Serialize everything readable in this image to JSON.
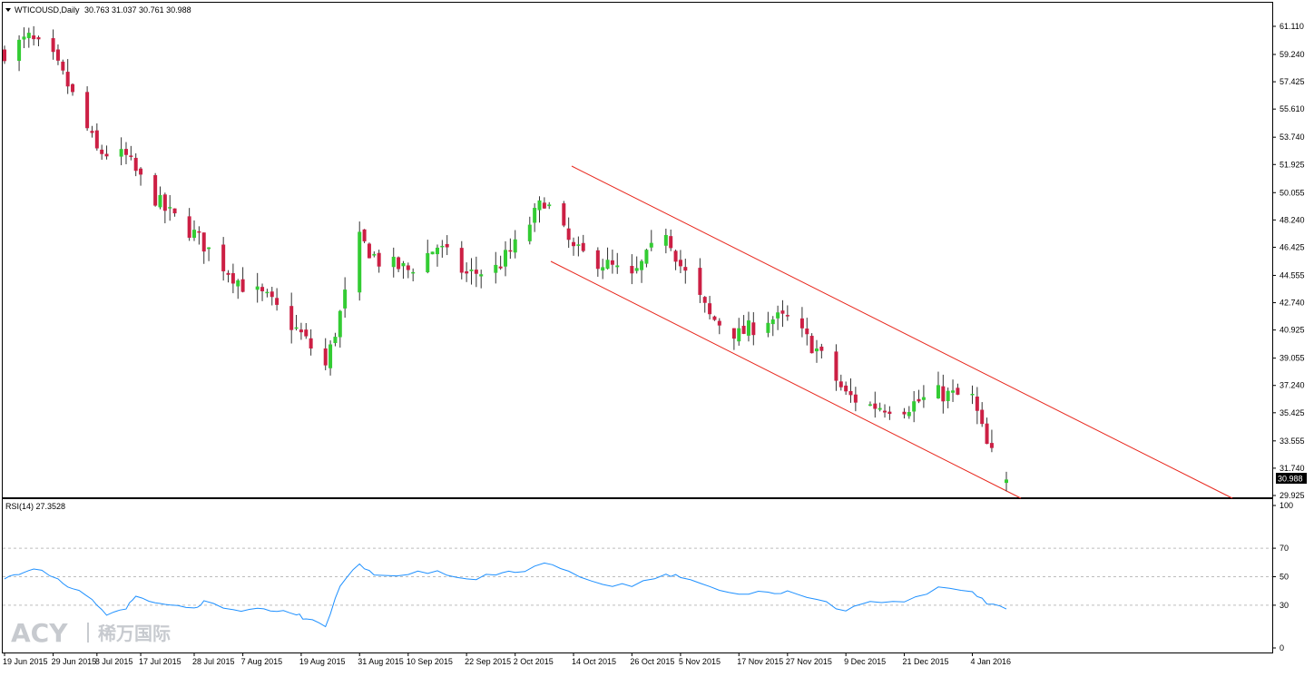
{
  "header": {
    "symbol": "WTICOUSD,Daily",
    "ohlc": "30.763 31.037 30.761 30.988"
  },
  "price_axis": {
    "ticks": [
      "61.110",
      "59.240",
      "57.425",
      "55.610",
      "53.740",
      "51.925",
      "50.055",
      "48.240",
      "46.425",
      "44.555",
      "42.740",
      "40.925",
      "39.055",
      "37.240",
      "35.425",
      "33.555",
      "31.740",
      "29.925"
    ],
    "current_price": "30.988"
  },
  "rsi": {
    "label": "RSI(14) 27.3528",
    "ticks": [
      "100",
      "70",
      "50",
      "30",
      "0"
    ],
    "color": "#1e90ff",
    "levels": [
      70,
      50,
      30
    ]
  },
  "date_axis": {
    "labels": [
      "19 Jun 2015",
      "29 Jun 2015",
      "8 Jul 2015",
      "17 Jul 2015",
      "28 Jul 2015",
      "7 Aug 2015",
      "19 Aug 2015",
      "31 Aug 2015",
      "10 Sep 2015",
      "22 Sep 2015",
      "2 Oct 2015",
      "14 Oct 2015",
      "26 Oct 2015",
      "5 Nov 2015",
      "17 Nov 2015",
      "27 Nov 2015",
      "9 Dec 2015",
      "21 Dec 2015",
      "4 Jan 2016"
    ]
  },
  "watermark": {
    "brand": "ACY",
    "brand_cn": "稀万国际"
  },
  "colors": {
    "bull": "#33cc33",
    "bear": "#cc1f44",
    "channel": "#e8281e",
    "grid": "#bdbdbd"
  },
  "chart_data": [
    {
      "type": "candlestick",
      "title": "WTICOUSD,Daily",
      "x_range": [
        "19 Jun 2015",
        "11 Jan 2016"
      ],
      "ylim": [
        29.925,
        61.11
      ],
      "annotations": "descending channel",
      "close_path": [
        [
          "19 Jun 2015",
          59.4
        ],
        [
          "24 Jun 2015",
          60.3
        ],
        [
          "29 Jun 2015",
          58.9
        ],
        [
          "2 Jul 2015",
          57.2
        ],
        [
          "8 Jul 2015",
          52.8
        ],
        [
          "14 Jul 2015",
          52.4
        ],
        [
          "17 Jul 2015",
          50.9
        ],
        [
          "22 Jul 2015",
          48.9
        ],
        [
          "28 Jul 2015",
          47.3
        ],
        [
          "3 Aug 2015",
          45.2
        ],
        [
          "7 Aug 2015",
          43.9
        ],
        [
          "12 Aug 2015",
          43.0
        ],
        [
          "19 Aug 2015",
          40.6
        ],
        [
          "24 Aug 2015",
          38.5
        ],
        [
          "27 Aug 2015",
          42.0
        ],
        [
          "31 Aug 2015",
          46.9
        ],
        [
          "4 Sep 2015",
          45.5
        ],
        [
          "10 Sep 2015",
          44.9
        ],
        [
          "16 Sep 2015",
          46.5
        ],
        [
          "22 Sep 2015",
          44.6
        ],
        [
          "28 Sep 2015",
          45.0
        ],
        [
          "2 Oct 2015",
          46.5
        ],
        [
          "8 Oct 2015",
          49.6
        ],
        [
          "14 Oct 2015",
          46.2
        ],
        [
          "20 Oct 2015",
          45.4
        ],
        [
          "26 Oct 2015",
          44.3
        ],
        [
          "2 Nov 2015",
          47.6
        ],
        [
          "5 Nov 2015",
          45.2
        ],
        [
          "11 Nov 2015",
          41.8
        ],
        [
          "17 Nov 2015",
          40.6
        ],
        [
          "23 Nov 2015",
          41.7
        ],
        [
          "27 Nov 2015",
          41.6
        ],
        [
          "3 Dec 2015",
          39.6
        ],
        [
          "9 Dec 2015",
          36.6
        ],
        [
          "14 Dec 2015",
          35.9
        ],
        [
          "21 Dec 2015",
          35.8
        ],
        [
          "28 Dec 2015",
          36.7
        ],
        [
          "4 Jan 2016",
          36.4
        ],
        [
          "7 Jan 2016",
          33.2
        ],
        [
          "11 Jan 2016",
          30.988
        ]
      ]
    },
    {
      "type": "line",
      "title": "RSI(14) 27.3528",
      "ylim": [
        0,
        100
      ],
      "x_range": [
        "19 Jun 2015",
        "11 Jan 2016"
      ],
      "levels": [
        70,
        50,
        30
      ],
      "points": [
        [
          "19 Jun 2015",
          48.5
        ],
        [
          "22 Jun 2015",
          51.5
        ],
        [
          "25 Jun 2015",
          55.4
        ],
        [
          "30 Jun 2015",
          48.5
        ],
        [
          "3 Jul 2015",
          41.6
        ],
        [
          "7 Jul 2015",
          34.0
        ],
        [
          "10 Jul 2015",
          23.0
        ],
        [
          "14 Jul 2015",
          27.3
        ],
        [
          "16 Jul 2015",
          36.3
        ],
        [
          "20 Jul 2015",
          31.7
        ],
        [
          "23 Jul 2015",
          30.2
        ],
        [
          "28 Jul 2015",
          28.1
        ],
        [
          "30 Jul 2015",
          33.2
        ],
        [
          "5 Aug 2015",
          26.9
        ],
        [
          "10 Aug 2015",
          27.9
        ],
        [
          "14 Aug 2015",
          25.6
        ],
        [
          "18 Aug 2015",
          23.2
        ],
        [
          "20 Aug 2015",
          20.4
        ],
        [
          "24 Aug 2015",
          15.0
        ],
        [
          "27 Aug 2015",
          43.4
        ],
        [
          "31 Aug 2015",
          59.0
        ],
        [
          "3 Sep 2015",
          51.2
        ],
        [
          "10 Sep 2015",
          51.5
        ],
        [
          "16 Sep 2015",
          54.2
        ],
        [
          "22 Sep 2015",
          48.5
        ],
        [
          "28 Sep 2015",
          51.2
        ],
        [
          "2 Oct 2015",
          53.0
        ],
        [
          "8 Oct 2015",
          59.6
        ],
        [
          "13 Oct 2015",
          53.9
        ],
        [
          "20 Oct 2015",
          44.6
        ],
        [
          "26 Oct 2015",
          43.1
        ],
        [
          "2 Nov 2015",
          51.8
        ],
        [
          "5 Nov 2015",
          49.4
        ],
        [
          "11 Nov 2015",
          43.1
        ],
        [
          "17 Nov 2015",
          37.7
        ],
        [
          "23 Nov 2015",
          39.2
        ],
        [
          "27 Nov 2015",
          40.1
        ],
        [
          "3 Dec 2015",
          34.1
        ],
        [
          "9 Dec 2015",
          26.0
        ],
        [
          "14 Dec 2015",
          32.6
        ],
        [
          "21 Dec 2015",
          32.3
        ],
        [
          "28 Dec 2015",
          42.8
        ],
        [
          "4 Jan 2016",
          39.5
        ],
        [
          "7 Jan 2016",
          30.8
        ],
        [
          "11 Jan 2016",
          27.35
        ]
      ]
    }
  ]
}
